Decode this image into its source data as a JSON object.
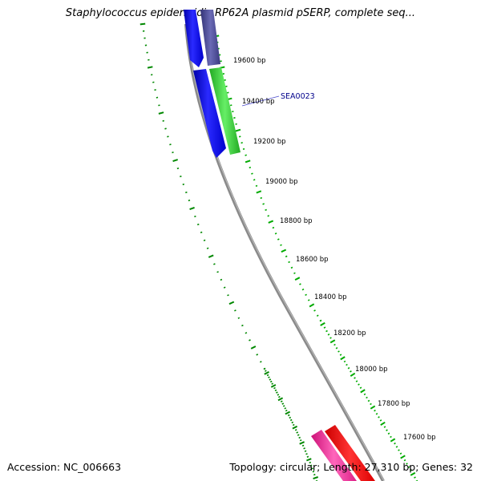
{
  "title": "Staphylococcus epidermidis RP62A plasmid pSERP, complete seq...",
  "footer": {
    "accession": "Accession: NC_006663",
    "summary": "Topology: circular; Length: 27,310 bp; Genes: 32"
  },
  "colors": {
    "backbone": "#8a8a8a",
    "tick": "#00aa00",
    "gc_dots": "#008800",
    "gene_blue": "#0000ff",
    "gene_slate": "#4b4b9a",
    "gene_green": "#33cc33",
    "gene_red": "#ff0000",
    "gene_pink": "#ff3399",
    "label_text": "#00008b"
  },
  "ticks": [
    {
      "label": "19600 bp"
    },
    {
      "label": "19400 bp"
    },
    {
      "label": "19200 bp"
    },
    {
      "label": "19000 bp"
    },
    {
      "label": "18800 bp"
    },
    {
      "label": "18600 bp"
    },
    {
      "label": "18400 bp"
    },
    {
      "label": "18200 bp"
    },
    {
      "label": "18000 bp"
    },
    {
      "label": "17800 bp"
    },
    {
      "label": "17600 bp"
    }
  ],
  "genes": [
    {
      "label": "SEA0023"
    }
  ]
}
